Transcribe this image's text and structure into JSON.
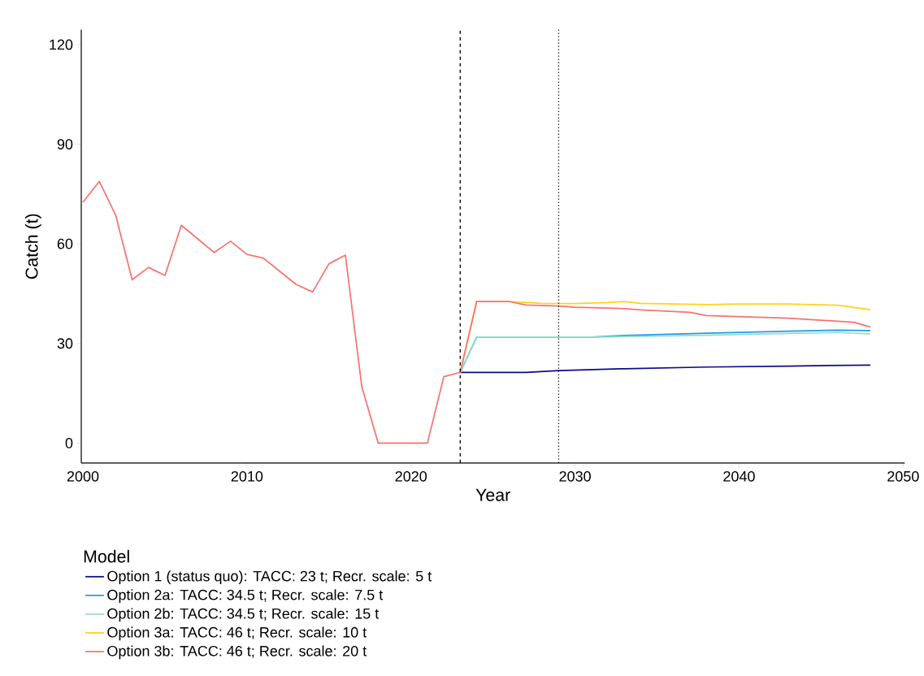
{
  "chart_data": {
    "type": "line",
    "xlabel": "Year",
    "ylabel": "Catch (t)",
    "legend_title": "Model",
    "legend": "bottom",
    "grid": false,
    "xlim": [
      1999.9,
      2050.1
    ],
    "xticks": [
      2000,
      2010,
      2020,
      2030,
      2040,
      2050
    ],
    "ylim": [
      -6,
      124.5
    ],
    "yticks": [
      0,
      30,
      60,
      90,
      120
    ],
    "ref_lines": [
      {
        "axis": "x",
        "value": 2023,
        "line_style": "dashed",
        "color": "#000000"
      },
      {
        "axis": "x",
        "value": 2029,
        "line_style": "dotted",
        "color": "#000000"
      }
    ],
    "series": [
      {
        "name": "Option 1 (status quo): TACC: 23 t; Recr. scale: 5 t",
        "color": "#0b0b8a",
        "x": [
          2023,
          2027,
          2029,
          2033,
          2038,
          2043,
          2048
        ],
        "values": [
          21.3,
          21.3,
          21.8,
          22.4,
          22.9,
          23.2,
          23.5
        ]
      },
      {
        "name": "Option 2a: TACC: 34.5 t; Recr. scale: 7.5 t",
        "color": "#1e9be6",
        "x": [
          2023,
          2024,
          2031,
          2033,
          2038,
          2043,
          2046,
          2048
        ],
        "values": [
          21.3,
          31.9,
          31.9,
          32.4,
          33.1,
          33.7,
          34.0,
          33.9
        ]
      },
      {
        "name": "Option 2b: TACC: 34.5 t; Recr. scale: 15 t",
        "color": "#94dcc8",
        "x": [
          2023,
          2024,
          2031,
          2038,
          2043,
          2046,
          2048
        ],
        "values": [
          21.3,
          31.9,
          31.9,
          32.5,
          33.0,
          33.3,
          32.9
        ]
      },
      {
        "name": "Option 3a: TACC: 46 t; Recr. scale: 10 t",
        "color": "#ffd21a",
        "x": [
          2023,
          2024,
          2026,
          2028,
          2030,
          2032,
          2033,
          2034,
          2038,
          2040,
          2043,
          2046,
          2048
        ],
        "values": [
          21.3,
          42.6,
          42.6,
          42.1,
          42.0,
          42.3,
          42.6,
          42.1,
          41.7,
          41.9,
          41.9,
          41.5,
          40.2
        ]
      },
      {
        "name": "Option 3b: TACC: 46 t; Recr. scale: 20 t",
        "color": "#f8736d",
        "x": [
          2000,
          2001,
          2002,
          2003,
          2004,
          2005,
          2006,
          2007,
          2008,
          2009,
          2010,
          2011,
          2012,
          2013,
          2014,
          2015,
          2016,
          2017,
          2018,
          2019,
          2020,
          2021,
          2022,
          2023,
          2024,
          2026,
          2027,
          2029,
          2030,
          2033,
          2034,
          2037,
          2038,
          2043,
          2046,
          2047,
          2048
        ],
        "values": [
          72.5,
          78.8,
          68.6,
          49.2,
          52.9,
          50.5,
          65.6,
          61.5,
          57.4,
          60.8,
          56.8,
          55.7,
          51.7,
          47.8,
          45.5,
          54.0,
          56.6,
          17.0,
          0,
          0,
          0,
          0,
          20.0,
          21.3,
          42.6,
          42.6,
          41.6,
          41.3,
          40.9,
          40.5,
          40.1,
          39.4,
          38.4,
          37.6,
          36.7,
          36.4,
          35.0
        ]
      }
    ]
  }
}
